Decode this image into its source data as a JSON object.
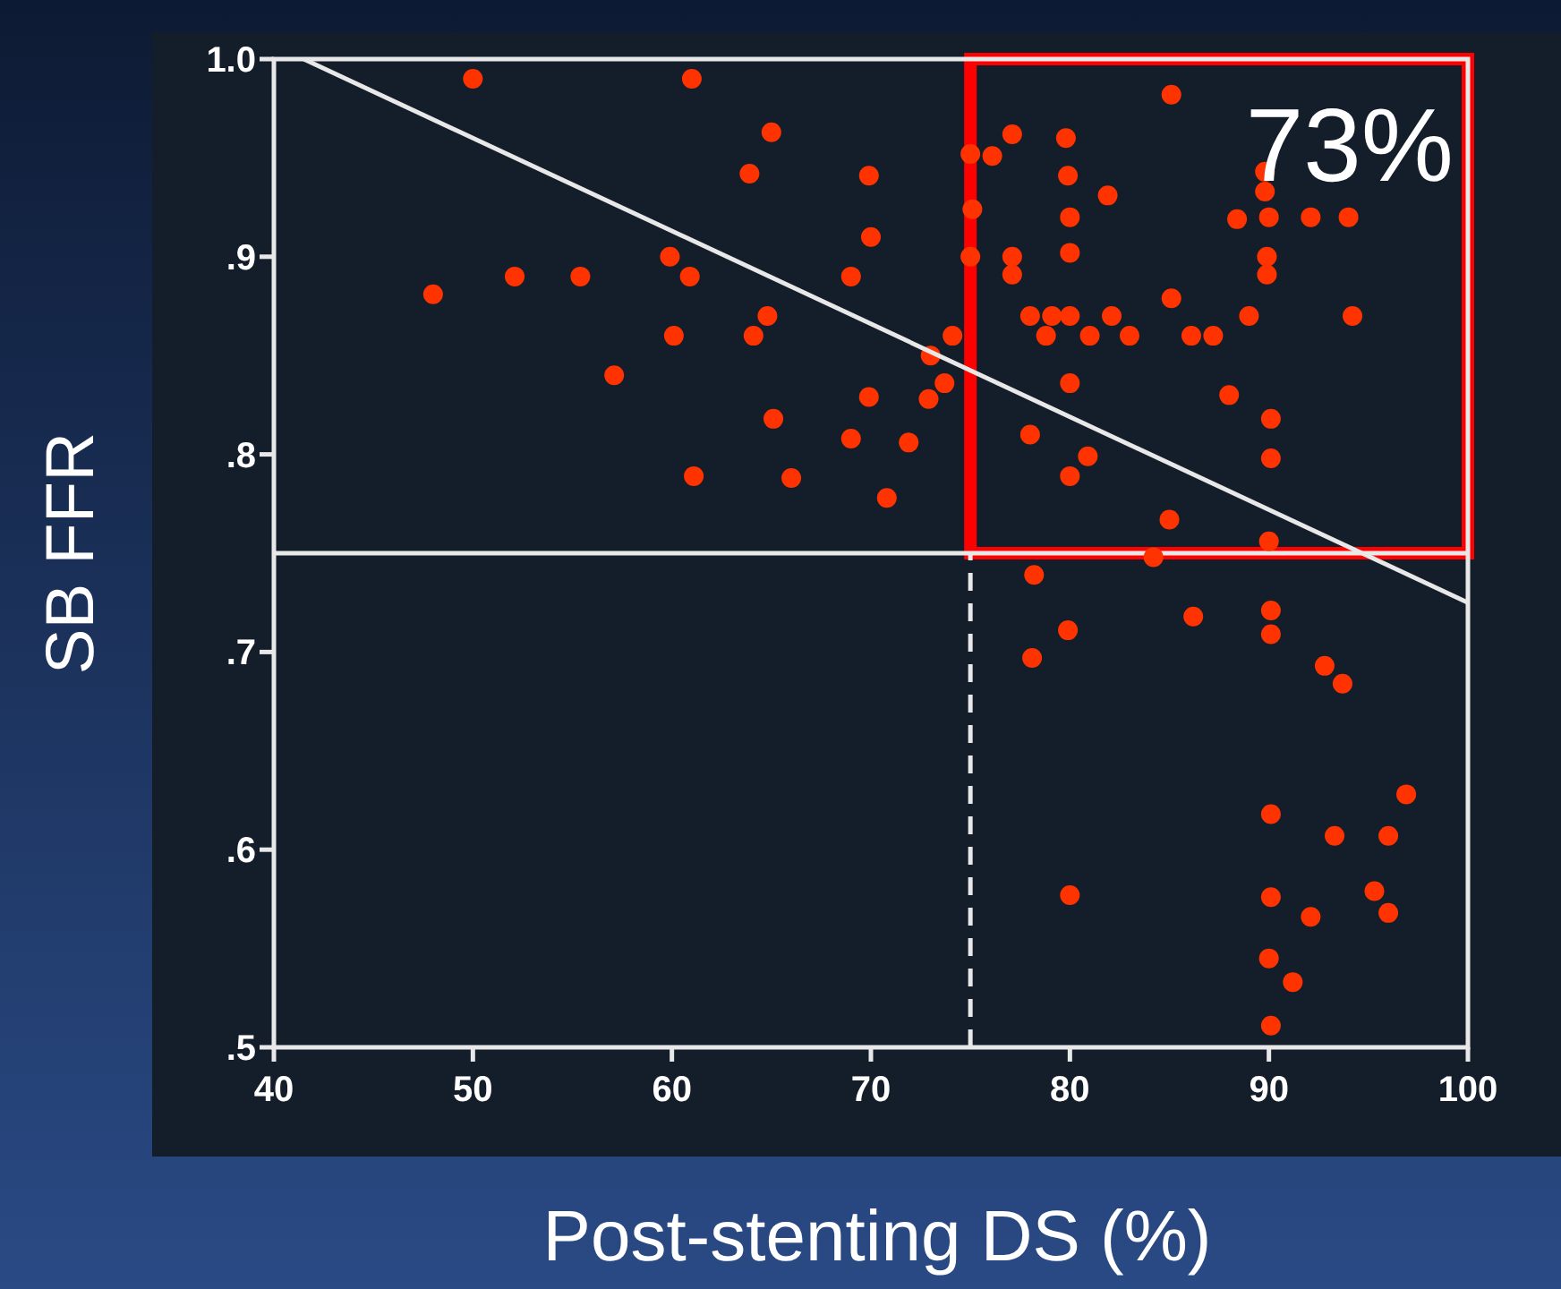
{
  "chart_data": {
    "type": "scatter",
    "xlabel": "Post-stenting DS (%)",
    "ylabel": "SB FFR",
    "xlim": [
      40,
      100
    ],
    "xticks": [
      40,
      50,
      60,
      70,
      80,
      90,
      100
    ],
    "ylim": [
      0.5,
      1.0
    ],
    "yticks": [
      {
        "value": 0.5,
        "label": ".5"
      },
      {
        "value": 0.6,
        "label": ".6"
      },
      {
        "value": 0.7,
        "label": ".7"
      },
      {
        "value": 0.8,
        "label": ".8"
      },
      {
        "value": 0.9,
        "label": ".9"
      },
      {
        "value": 1.0,
        "label": "1.0"
      }
    ],
    "grid": false,
    "series": [
      {
        "marker": "circle",
        "color": "#ff3300",
        "x": [
          50,
          61,
          65,
          63.9,
          69.9,
          70,
          75,
          75,
          59.9,
          60.9,
          52.1,
          55.4,
          48,
          69,
          64.8,
          64.1,
          60.1,
          74.1,
          73,
          73.7,
          72.9,
          69.9,
          57.1,
          65.1,
          69,
          71.9,
          61.1,
          66,
          70.8,
          85.1,
          77.1,
          79.8,
          76.1,
          89.8,
          79.9,
          89.8,
          81.9,
          75.1,
          80,
          88.4,
          90,
          92.1,
          94,
          77.1,
          80,
          89.9,
          77.1,
          89.9,
          85.1,
          78,
          79.1,
          80,
          82.1,
          89,
          94.2,
          78.8,
          81,
          83,
          86.1,
          87.2,
          80,
          88,
          90.1,
          78,
          90.1,
          80.9,
          80,
          85,
          90,
          84.2,
          78.2,
          86.2,
          90.1,
          90.1,
          79.9,
          78.1,
          92.8,
          93.7,
          96.9,
          90.1,
          93.3,
          96,
          80,
          90.1,
          95.3,
          96,
          92.1,
          90,
          91.2,
          90.1
        ],
        "values": [
          0.99,
          0.99,
          0.963,
          0.942,
          0.941,
          0.91,
          0.952,
          0.9,
          0.9,
          0.89,
          0.89,
          0.89,
          0.881,
          0.89,
          0.87,
          0.86,
          0.86,
          0.86,
          0.85,
          0.836,
          0.828,
          0.829,
          0.84,
          0.818,
          0.808,
          0.806,
          0.789,
          0.788,
          0.778,
          0.982,
          0.962,
          0.96,
          0.951,
          0.943,
          0.941,
          0.933,
          0.931,
          0.924,
          0.92,
          0.919,
          0.92,
          0.92,
          0.92,
          0.9,
          0.902,
          0.9,
          0.891,
          0.891,
          0.879,
          0.87,
          0.87,
          0.87,
          0.87,
          0.87,
          0.87,
          0.86,
          0.86,
          0.86,
          0.86,
          0.86,
          0.836,
          0.83,
          0.818,
          0.81,
          0.798,
          0.799,
          0.789,
          0.767,
          0.756,
          0.748,
          0.739,
          0.718,
          0.721,
          0.709,
          0.711,
          0.697,
          0.693,
          0.684,
          0.628,
          0.618,
          0.607,
          0.607,
          0.577,
          0.576,
          0.579,
          0.568,
          0.566,
          0.545,
          0.533,
          0.511
        ]
      },
      {
        "type": "line",
        "color": "#e8e8e8",
        "x": [
          41.5,
          100
        ],
        "values": [
          1.0,
          0.725
        ]
      }
    ],
    "ref_lines": [
      {
        "axis": "y",
        "value": 0.75,
        "color": "#e8e8e8",
        "line_style": "solid"
      },
      {
        "axis": "x",
        "value": 75,
        "color": "#e8e8e8",
        "line_style": "dashed"
      }
    ],
    "annotations": [
      "73%"
    ]
  }
}
